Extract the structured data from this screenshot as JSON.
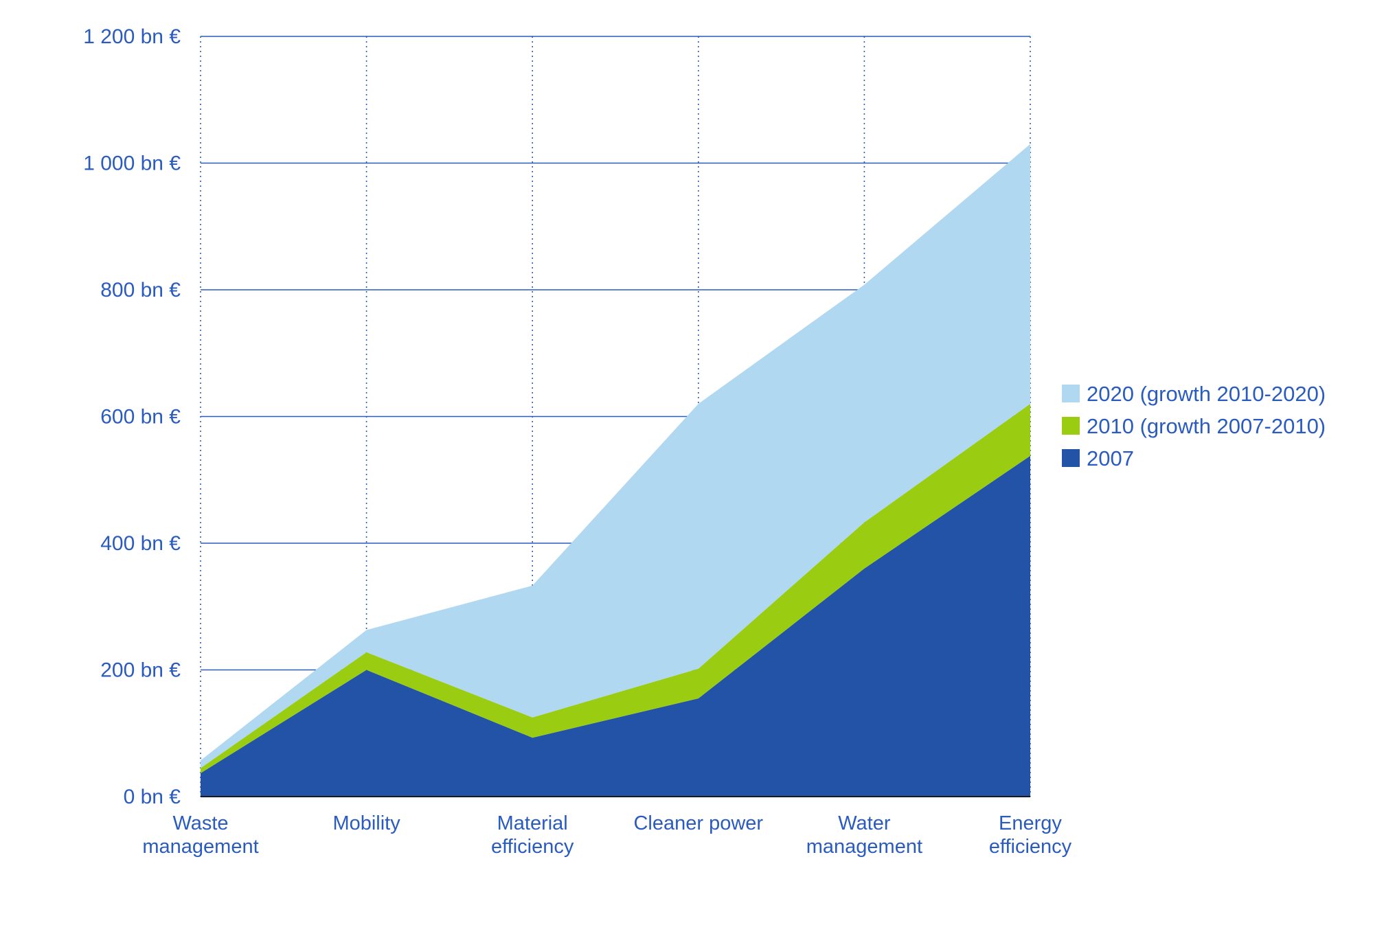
{
  "chart_data": {
    "type": "area",
    "stacked": true,
    "title": "",
    "xlabel": "",
    "ylabel": "",
    "categories": [
      [
        "Waste",
        "management"
      ],
      [
        "Mobility"
      ],
      [
        "Material",
        "efficiency"
      ],
      [
        "Cleaner power"
      ],
      [
        "Water",
        "management"
      ],
      [
        "Energy",
        "efficiency"
      ]
    ],
    "ylim": [
      0,
      1200
    ],
    "yticks": [
      0,
      200,
      400,
      600,
      800,
      1000,
      1200
    ],
    "ytick_labels": [
      "0 bn €",
      "200 bn €",
      "400 bn €",
      "600 bn €",
      "800 bn €",
      "1 000 bn €",
      "1 200 bn €"
    ],
    "series": [
      {
        "name": "2007",
        "color": "#2253a6",
        "values": [
          37,
          200,
          93,
          155,
          360,
          538
        ]
      },
      {
        "name": "2010 (growth 2007-2010)",
        "color": "#9acd12",
        "values": [
          8,
          28,
          32,
          47,
          73,
          82
        ]
      },
      {
        "name": "2020 (growth 2010-2020)",
        "color": "#b0d8f0",
        "values": [
          12,
          35,
          208,
          418,
          375,
          410
        ]
      }
    ],
    "legend_order": [
      2,
      1,
      0
    ],
    "legend_position": "right",
    "grid": {
      "horizontal": true,
      "horizontal_style": "solid",
      "vertical": true,
      "vertical_style": "dotted"
    },
    "axis_color": "#2a5bbf"
  }
}
